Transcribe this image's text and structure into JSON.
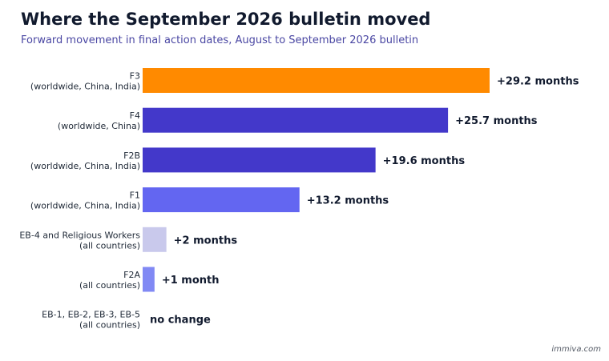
{
  "title": "Where the September 2026 bulletin moved",
  "subtitle": "Forward movement in final action dates, August to September 2026 bulletin",
  "credit": "immiva.com",
  "chart_data": {
    "type": "bar",
    "orientation": "horizontal",
    "title": "Where the September 2026 bulletin moved",
    "subtitle": "Forward movement in final action dates, August to September 2026 bulletin",
    "xlabel": "",
    "ylabel": "",
    "grid": false,
    "legend": "none",
    "xlim": [
      0,
      29.2
    ],
    "categories": [
      {
        "name": "F3",
        "scope": "(worldwide, China, India)"
      },
      {
        "name": "F4",
        "scope": "(worldwide, China)"
      },
      {
        "name": "F2B",
        "scope": "(worldwide, China, India)"
      },
      {
        "name": "F1",
        "scope": "(worldwide, China, India)"
      },
      {
        "name": "EB-4 and Religious Workers",
        "scope": "(all countries)"
      },
      {
        "name": "F2A",
        "scope": "(all countries)"
      },
      {
        "name": "EB-1, EB-2, EB-3, EB-5",
        "scope": "(all countries)"
      }
    ],
    "values": [
      29.2,
      25.7,
      19.6,
      13.2,
      2,
      1,
      0
    ],
    "value_labels": [
      "+29.2 months",
      "+25.7 months",
      "+19.6 months",
      "+13.2 months",
      "+2 months",
      "+1 month",
      "no change"
    ],
    "colors": [
      "#ff8a00",
      "#4338ca",
      "#4338ca",
      "#6366f1",
      "#c9c9ec",
      "#8189f4",
      "#8189f4"
    ]
  }
}
